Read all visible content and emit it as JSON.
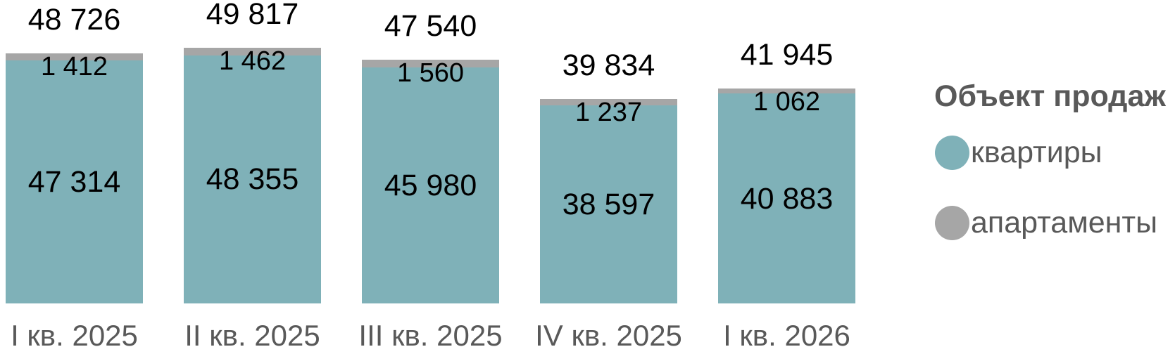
{
  "legend": {
    "title": "Объект продаж",
    "items": [
      {
        "label": "квартиры",
        "color": "#7FB1B8"
      },
      {
        "label": "апартаменты",
        "color": "#A6A6A6"
      }
    ]
  },
  "colors": {
    "apartments_teal": "#7FB1B8",
    "aparthotels_gray": "#A6A6A6",
    "data_label": "#000000",
    "axis_text": "#595959",
    "background": "#FFFFFF"
  },
  "chart_data": {
    "type": "bar",
    "stacked": true,
    "grid": false,
    "axes_hidden": true,
    "legend_position": "right",
    "legend_title": "Объект продаж",
    "title": "",
    "xlabel": "",
    "ylabel": "",
    "categories": [
      "I кв. 2025",
      "II кв. 2025",
      "III кв. 2025",
      "IV кв. 2025",
      "I кв. 2026"
    ],
    "series": [
      {
        "name": "квартиры",
        "color": "#7FB1B8",
        "values": [
          47314,
          48355,
          45980,
          38597,
          40883
        ],
        "labels": [
          "47 314",
          "48 355",
          "45 980",
          "38 597",
          "40 883"
        ]
      },
      {
        "name": "апартаменты",
        "color": "#A6A6A6",
        "values": [
          1412,
          1462,
          1560,
          1237,
          1062
        ],
        "labels": [
          "1 412",
          "1 462",
          "1 560",
          "1 237",
          "1 062"
        ]
      }
    ],
    "totals": [
      48726,
      49817,
      47540,
      39834,
      41945
    ],
    "total_labels": [
      "48 726",
      "49 817",
      "47 540",
      "39 834",
      "41 945"
    ]
  }
}
